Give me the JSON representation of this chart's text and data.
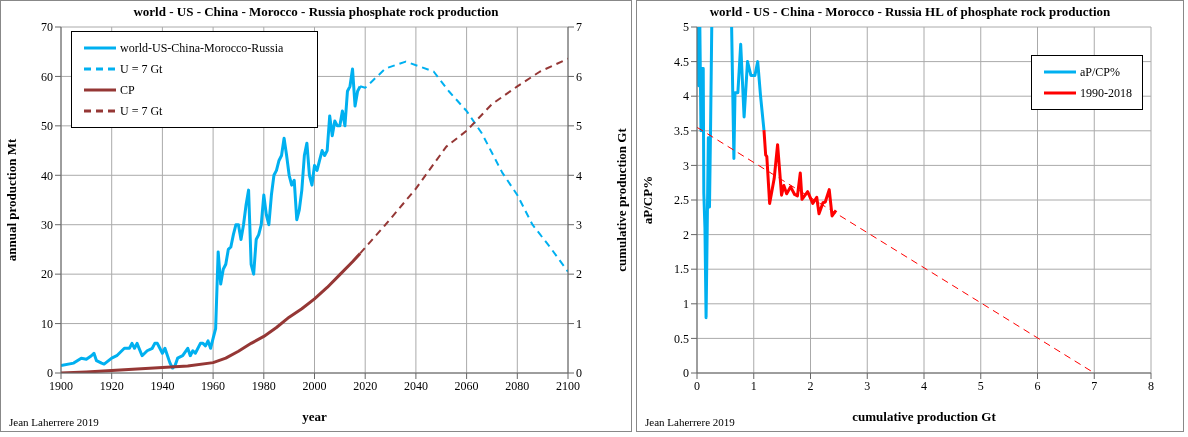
{
  "chart_data": [
    {
      "type": "line",
      "title": "world - US - China - Morocco - Russia phosphate rock production",
      "xlabel": "year",
      "ylabel": "annual production Mt",
      "y2label": "cumulative production Gt",
      "xlim": [
        1900,
        2100
      ],
      "xticks": [
        1900,
        1920,
        1940,
        1960,
        1980,
        2000,
        2020,
        2040,
        2060,
        2080,
        2100
      ],
      "ylim": [
        0,
        70
      ],
      "yticks": [
        0,
        10,
        20,
        30,
        40,
        50,
        60,
        70
      ],
      "y2lim": [
        0,
        7
      ],
      "y2ticks": [
        0,
        1,
        2,
        3,
        4,
        5,
        6,
        7
      ],
      "grid": true,
      "legend": "top left",
      "marker": "none",
      "annotations": [
        "Jean Laherrere 2019"
      ],
      "series": [
        {
          "name": "world-US-China-Morocco-Russia",
          "color": "#00b0f0",
          "line_style": "solid",
          "x": [
            1900,
            1905,
            1908,
            1910,
            1912,
            1913,
            1914,
            1916,
            1917,
            1920,
            1922,
            1925,
            1927,
            1928,
            1929,
            1930,
            1932,
            1934,
            1936,
            1937,
            1938,
            1939,
            1940,
            1941,
            1943,
            1944,
            1945,
            1946,
            1948,
            1950,
            1951,
            1952,
            1953,
            1955,
            1956,
            1957,
            1958,
            1959,
            1960,
            1961,
            1962,
            1963,
            1964,
            1965,
            1966,
            1967,
            1968,
            1969,
            1970,
            1971,
            1972,
            1973,
            1974,
            1975,
            1976,
            1977,
            1978,
            1979,
            1980,
            1981,
            1982,
            1983,
            1984,
            1985,
            1986,
            1987,
            1988,
            1989,
            1990,
            1991,
            1992,
            1993,
            1994,
            1995,
            1996,
            1997,
            1998,
            1999,
            2000,
            2001,
            2002,
            2003,
            2004,
            2005,
            2006,
            2007,
            2008,
            2009,
            2010,
            2011,
            2012,
            2013,
            2014,
            2015,
            2016,
            2017,
            2018
          ],
          "values": [
            1.5,
            2,
            3,
            2.8,
            3.5,
            4,
            2.5,
            2,
            1.8,
            3,
            3.5,
            5,
            5,
            6,
            5,
            6,
            3.5,
            4.5,
            5,
            6,
            6,
            5,
            4,
            5,
            2,
            1,
            1.5,
            3,
            3.5,
            5,
            3.5,
            4.5,
            4,
            6,
            6,
            5.5,
            6.5,
            5,
            7,
            9,
            24.5,
            18,
            21,
            22,
            25,
            25.5,
            28,
            30,
            30,
            27,
            30,
            34,
            37,
            22,
            20,
            27,
            28,
            30,
            36,
            32,
            30,
            36,
            40,
            41,
            43,
            44,
            47.5,
            44,
            40,
            38,
            39,
            31,
            33,
            37,
            44,
            46.5,
            40,
            38,
            42,
            41,
            43,
            45,
            44,
            45,
            52,
            48,
            51,
            50,
            50,
            53,
            50,
            57,
            58,
            61.5,
            54,
            57,
            58
          ]
        },
        {
          "name": "U = 7 Gt",
          "color": "#00b0f0",
          "line_style": "dashed",
          "x": [
            2018,
            2020,
            2028,
            2036,
            2047,
            2053,
            2060,
            2066,
            2074,
            2080,
            2086,
            2093,
            2100
          ],
          "values": [
            58,
            57.7,
            61.6,
            63,
            61,
            57,
            53,
            48.5,
            40.6,
            36,
            30,
            25.4,
            20.5
          ]
        },
        {
          "name": "CP",
          "color": "#953735",
          "line_style": "solid",
          "axis": "y2",
          "x": [
            1900,
            1910,
            1920,
            1930,
            1940,
            1950,
            1960,
            1965,
            1970,
            1975,
            1980,
            1985,
            1990,
            1995,
            2000,
            2005,
            2010,
            2015,
            2018
          ],
          "values": [
            0,
            0.02,
            0.05,
            0.08,
            0.11,
            0.14,
            0.21,
            0.3,
            0.44,
            0.6,
            0.74,
            0.92,
            1.13,
            1.3,
            1.5,
            1.73,
            1.99,
            2.25,
            2.42
          ]
        },
        {
          "name": "U = 7 Gt",
          "color": "#953735",
          "line_style": "dashed",
          "axis": "y2",
          "x": [
            2018,
            2028,
            2040,
            2052,
            2060,
            2070,
            2080,
            2089,
            2100
          ],
          "values": [
            2.42,
            3.0,
            3.73,
            4.58,
            4.9,
            5.44,
            5.8,
            6.1,
            6.36
          ]
        }
      ]
    },
    {
      "type": "line",
      "title": "world - US - China - Morocco - Russia HL of phosphate rock production",
      "xlabel": "cumulative production Gt",
      "ylabel": "aP/CP%",
      "xlim": [
        0,
        8
      ],
      "xticks": [
        0,
        1,
        2,
        3,
        4,
        5,
        6,
        7,
        8
      ],
      "ylim": [
        0,
        5
      ],
      "yticks": [
        0,
        0.5,
        1,
        1.5,
        2,
        2.5,
        3,
        3.5,
        4,
        4.5,
        5
      ],
      "grid": true,
      "legend": "top right",
      "marker": "none",
      "annotations": [
        "Jean Laherrere 2019"
      ],
      "series": [
        {
          "name": "aP/CP%",
          "color": "#00b0f0",
          "line_style": "solid",
          "x": [
            0.02,
            0.03,
            0.05,
            0.07,
            0.09,
            0.11,
            0.12,
            0.14,
            0.16,
            0.18,
            0.2,
            0.22,
            0.24,
            0.26,
            0.4,
            0.61,
            0.65,
            0.67,
            0.72,
            0.77,
            0.83,
            0.89,
            0.95,
            1.02,
            1.07,
            1.12,
            1.18
          ],
          "values": [
            5,
            4.15,
            5,
            3.5,
            4.4,
            4.4,
            2.6,
            2.1,
            0.8,
            2.1,
            3.4,
            2.4,
            3.6,
            5,
            null,
            5,
            3.1,
            4.05,
            4.05,
            4.75,
            3.7,
            4.5,
            4.3,
            4.3,
            4.5,
            4.0,
            3.51
          ]
        },
        {
          "name": "1990-2018",
          "color": "#ff0000",
          "line_style": "solid",
          "x": [
            1.18,
            1.21,
            1.23,
            1.28,
            1.36,
            1.42,
            1.49,
            1.53,
            1.58,
            1.65,
            1.72,
            1.77,
            1.82,
            1.85,
            1.95,
            2.04,
            2.11,
            2.15,
            2.22,
            2.26,
            2.33,
            2.38,
            2.45
          ],
          "values": [
            3.51,
            3.15,
            3.13,
            2.45,
            2.81,
            3.3,
            2.57,
            2.71,
            2.59,
            2.69,
            2.58,
            2.56,
            2.89,
            2.51,
            2.62,
            2.45,
            2.54,
            2.3,
            2.46,
            2.47,
            2.65,
            2.27,
            2.35
          ]
        },
        {
          "color": "#ff0000",
          "line_style": "dashed",
          "x": [
            0,
            7
          ],
          "values": [
            3.55,
            0
          ]
        }
      ]
    }
  ]
}
